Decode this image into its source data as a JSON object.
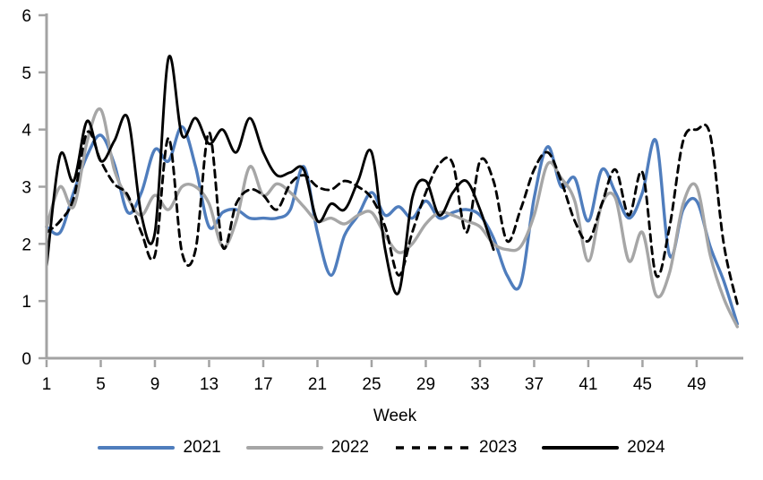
{
  "chart_data": {
    "type": "line",
    "title": "",
    "xlabel": "Week",
    "ylabel": "",
    "xlim": [
      1,
      52.6
    ],
    "ylim": [
      0,
      6
    ],
    "x_ticks": [
      1,
      5,
      9,
      13,
      17,
      21,
      25,
      29,
      33,
      37,
      41,
      45,
      49
    ],
    "y_ticks": [
      0,
      1,
      2,
      3,
      4,
      5,
      6
    ],
    "grid": false,
    "legend_position": "bottom",
    "axis_color": "#a3a3a3",
    "weeks": [
      1,
      2,
      3,
      4,
      5,
      6,
      7,
      8,
      9,
      10,
      11,
      12,
      13,
      14,
      15,
      16,
      17,
      18,
      19,
      20,
      21,
      22,
      23,
      24,
      25,
      26,
      27,
      28,
      29,
      30,
      31,
      32,
      33,
      34,
      35,
      36,
      37,
      38,
      39,
      40,
      41,
      42,
      43,
      44,
      45,
      46,
      47,
      48,
      49,
      50,
      51,
      52
    ],
    "series": [
      {
        "name": "2021",
        "color": "#4f7dbd",
        "style": "solid",
        "stroke_width": 3.4,
        "values": [
          2.3,
          2.2,
          2.9,
          3.55,
          3.9,
          3.4,
          2.55,
          2.9,
          3.65,
          3.45,
          4.05,
          3.35,
          2.3,
          2.55,
          2.6,
          2.45,
          2.45,
          2.45,
          2.6,
          3.35,
          2.2,
          1.45,
          2.15,
          2.5,
          2.9,
          2.5,
          2.65,
          2.45,
          2.75,
          2.45,
          2.55,
          2.6,
          2.5,
          2.1,
          1.45,
          1.3,
          2.8,
          3.7,
          3.0,
          3.15,
          2.4,
          3.3,
          2.9,
          2.45,
          2.9,
          3.8,
          1.8,
          2.6,
          2.75,
          1.95,
          1.35,
          0.6
        ]
      },
      {
        "name": "2022",
        "color": "#a6a6a6",
        "style": "solid",
        "stroke_width": 3.4,
        "values": [
          2.3,
          3.0,
          2.65,
          3.8,
          4.35,
          3.3,
          2.8,
          2.5,
          2.85,
          2.6,
          3.0,
          3.0,
          2.7,
          1.95,
          2.4,
          3.35,
          2.85,
          3.05,
          2.9,
          2.65,
          2.4,
          2.45,
          2.35,
          2.5,
          2.55,
          2.15,
          1.85,
          2.0,
          2.35,
          2.55,
          2.5,
          2.4,
          2.3,
          2.0,
          1.9,
          1.95,
          2.5,
          3.4,
          3.15,
          2.75,
          1.7,
          2.7,
          2.8,
          1.7,
          2.2,
          1.1,
          1.5,
          2.7,
          3.0,
          1.8,
          1.05,
          0.55
        ]
      },
      {
        "name": "2023",
        "color": "#000000",
        "style": "dashed",
        "stroke_width": 2.9,
        "values": [
          2.2,
          2.4,
          2.8,
          3.95,
          3.45,
          3.05,
          2.85,
          2.2,
          1.8,
          3.85,
          1.85,
          1.9,
          3.95,
          1.95,
          2.7,
          2.95,
          2.85,
          2.6,
          3.05,
          3.2,
          3.0,
          2.95,
          3.1,
          3.0,
          2.8,
          2.3,
          1.45,
          2.2,
          2.9,
          3.4,
          3.4,
          2.2,
          3.45,
          3.1,
          2.05,
          2.6,
          3.3,
          3.6,
          3.1,
          2.4,
          2.05,
          2.7,
          3.3,
          2.5,
          3.25,
          1.45,
          2.3,
          3.8,
          4.0,
          3.9,
          2.0,
          0.95
        ]
      },
      {
        "name": "2024",
        "color": "#000000",
        "style": "solid",
        "stroke_width": 2.9,
        "values": [
          1.6,
          3.55,
          3.1,
          4.15,
          3.45,
          3.8,
          4.2,
          2.5,
          2.2,
          5.25,
          3.9,
          4.2,
          3.75,
          4.0,
          3.6,
          4.2,
          3.6,
          3.2,
          3.25,
          3.3,
          2.4,
          2.7,
          2.6,
          3.1,
          3.6,
          1.9,
          1.15,
          2.8,
          3.1,
          2.5,
          2.9,
          3.1,
          2.6,
          1.9
        ]
      }
    ]
  }
}
